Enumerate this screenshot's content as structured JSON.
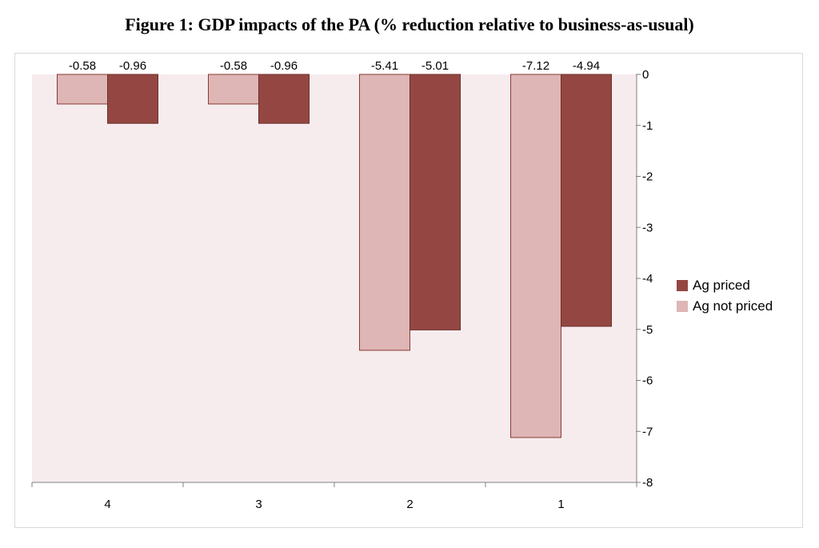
{
  "chart_data": {
    "type": "bar",
    "title": "Figure 1: GDP impacts of the PA (% reduction relative to business-as-usual)",
    "categories": [
      "4",
      "3",
      "2",
      "1"
    ],
    "series": [
      {
        "name": "Ag not priced",
        "values": [
          -0.58,
          -0.58,
          -5.41,
          -7.12
        ],
        "color": "#deb6b5",
        "stroke": "#8b3a35"
      },
      {
        "name": "Ag priced",
        "values": [
          -0.96,
          -0.96,
          -5.01,
          -4.94
        ],
        "color": "#944742",
        "stroke": "#6e2f2b"
      }
    ],
    "data_labels": {
      "Ag not priced": [
        "-0.58",
        "-0.58",
        "-5.41",
        "-7.12"
      ],
      "Ag priced": [
        "-0.96",
        "-0.96",
        "-5.01",
        "-4.94"
      ]
    },
    "ylim": [
      -8,
      0
    ],
    "yticks": [
      "0",
      "-1",
      "-2",
      "-3",
      "-4",
      "-5",
      "-6",
      "-7",
      "-8"
    ],
    "y_axis_side": "right",
    "legend_position": "right",
    "plot_background": "#f6ecee",
    "xlabel": "",
    "ylabel": ""
  }
}
